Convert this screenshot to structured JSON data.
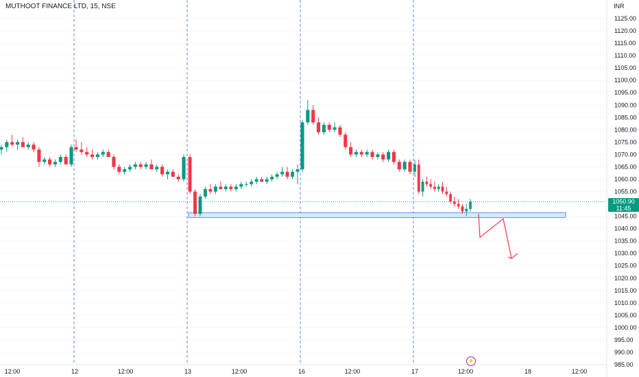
{
  "header": {
    "title": "MUTHOOT FINANCE LTD, 15, NSE",
    "currency": "INR"
  },
  "price_badge": {
    "price": "1050.90",
    "countdown": "11:45",
    "color": "#089981"
  },
  "colors": {
    "up": "#089981",
    "down": "#f23645",
    "separator": "#2962ff",
    "zone_fill": "#d5e6fb",
    "zone_stroke": "#2962ff",
    "arrow": "#f23645"
  },
  "chart_data": {
    "type": "candlestick",
    "ylim": [
      985,
      1128
    ],
    "y_ticks": [
      1125,
      1120,
      1115,
      1110,
      1105,
      1100,
      1095,
      1090,
      1085,
      1080,
      1075,
      1070,
      1065,
      1060,
      1055,
      1045,
      1040,
      1035,
      1030,
      1025,
      1020,
      1015,
      1010,
      1005,
      1000,
      995,
      990,
      985
    ],
    "y_tick_labels": [
      "1125.00",
      "1120.00",
      "1115.00",
      "1110.00",
      "1105.00",
      "1100.00",
      "1095.00",
      "1090.00",
      "1085.00",
      "1080.00",
      "1075.00",
      "1070.00",
      "1065.00",
      "1060.00",
      "1055.00",
      "1045.00",
      "1040.00",
      "1035.00",
      "1030.00",
      "1025.00",
      "1020.00",
      "1015.00",
      "1010.00",
      "1005.00",
      "1000.00",
      "995.00",
      "990.00",
      "985.00"
    ],
    "x_labels": [
      "12:00",
      "12",
      "12:00",
      "13",
      "12:00",
      "16",
      "12:00",
      "17",
      "12:00",
      "18",
      "12:00"
    ],
    "day_separators": [
      "12",
      "13",
      "16",
      "17"
    ],
    "last_price": 1050.9,
    "support_zone": [
      1044.5,
      1046.5
    ],
    "projection_path": [
      1046,
      1036.5,
      1044,
      1028
    ],
    "sessions": [
      {
        "day": "11",
        "candles": [
          [
            1072,
            1074,
            1070,
            1073
          ],
          [
            1073,
            1076,
            1071,
            1075
          ],
          [
            1075,
            1078,
            1073,
            1074
          ],
          [
            1074,
            1076,
            1072,
            1075
          ],
          [
            1075,
            1077,
            1073,
            1073
          ],
          [
            1073,
            1075,
            1072,
            1074
          ],
          [
            1074,
            1075,
            1071,
            1072
          ],
          [
            1072,
            1073,
            1065,
            1067
          ],
          [
            1067,
            1069,
            1066,
            1068
          ],
          [
            1068,
            1069,
            1065,
            1066
          ],
          [
            1066,
            1068,
            1065,
            1067
          ],
          [
            1067,
            1070,
            1066,
            1069
          ],
          [
            1069,
            1070,
            1066,
            1066
          ],
          [
            1066,
            1074,
            1065,
            1073
          ]
        ]
      },
      {
        "day": "12",
        "candles": [
          [
            1073,
            1076,
            1071,
            1072
          ],
          [
            1072,
            1075,
            1070,
            1071
          ],
          [
            1071,
            1073,
            1069,
            1070
          ],
          [
            1070,
            1072,
            1068,
            1069
          ],
          [
            1069,
            1071,
            1068,
            1070
          ],
          [
            1070,
            1072,
            1069,
            1071
          ],
          [
            1071,
            1072,
            1069,
            1069
          ],
          [
            1069,
            1070,
            1064,
            1065
          ],
          [
            1065,
            1066,
            1062,
            1063
          ],
          [
            1063,
            1065,
            1062,
            1064
          ],
          [
            1064,
            1066,
            1063,
            1065
          ],
          [
            1065,
            1067,
            1064,
            1066
          ],
          [
            1066,
            1067,
            1064,
            1065
          ],
          [
            1065,
            1067,
            1064,
            1066
          ],
          [
            1066,
            1068,
            1064,
            1064
          ],
          [
            1064,
            1066,
            1063,
            1065
          ],
          [
            1065,
            1066,
            1061,
            1062
          ],
          [
            1062,
            1064,
            1060,
            1063
          ],
          [
            1063,
            1064,
            1061,
            1061
          ],
          [
            1061,
            1062,
            1059,
            1060
          ],
          [
            1060,
            1070,
            1059,
            1069
          ]
        ]
      },
      {
        "day": "13",
        "candles": [
          [
            1069,
            1070,
            1054,
            1055
          ],
          [
            1055,
            1056,
            1045,
            1046
          ],
          [
            1046,
            1054,
            1045,
            1053
          ],
          [
            1053,
            1057,
            1052,
            1056
          ],
          [
            1056,
            1058,
            1054,
            1055
          ],
          [
            1055,
            1058,
            1054,
            1057
          ],
          [
            1057,
            1059,
            1056,
            1056
          ],
          [
            1056,
            1058,
            1055,
            1057
          ],
          [
            1057,
            1058,
            1055,
            1056
          ],
          [
            1056,
            1058,
            1055,
            1057
          ],
          [
            1057,
            1059,
            1056,
            1058
          ],
          [
            1058,
            1059,
            1057,
            1058
          ],
          [
            1058,
            1060,
            1057,
            1059
          ],
          [
            1059,
            1061,
            1058,
            1060
          ],
          [
            1060,
            1061,
            1059,
            1059
          ],
          [
            1059,
            1061,
            1058,
            1060
          ],
          [
            1060,
            1062,
            1059,
            1061
          ],
          [
            1061,
            1063,
            1060,
            1062
          ],
          [
            1062,
            1065,
            1061,
            1063
          ],
          [
            1063,
            1065,
            1060,
            1061
          ],
          [
            1061,
            1064,
            1060,
            1063
          ],
          [
            1063,
            1066,
            1058,
            1064
          ]
        ]
      },
      {
        "day": "16",
        "candles": [
          [
            1064,
            1084,
            1063,
            1083
          ],
          [
            1083,
            1092,
            1082,
            1088
          ],
          [
            1088,
            1090,
            1082,
            1083
          ],
          [
            1083,
            1085,
            1078,
            1079
          ],
          [
            1079,
            1083,
            1078,
            1082
          ],
          [
            1082,
            1083,
            1079,
            1080
          ],
          [
            1080,
            1083,
            1079,
            1081
          ],
          [
            1081,
            1082,
            1077,
            1078
          ],
          [
            1078,
            1079,
            1072,
            1073
          ],
          [
            1073,
            1075,
            1069,
            1070
          ],
          [
            1070,
            1072,
            1069,
            1071
          ],
          [
            1071,
            1072,
            1069,
            1070
          ],
          [
            1070,
            1072,
            1069,
            1071
          ],
          [
            1071,
            1072,
            1068,
            1069
          ],
          [
            1069,
            1071,
            1068,
            1070
          ],
          [
            1070,
            1071,
            1067,
            1068
          ],
          [
            1068,
            1072,
            1067,
            1071
          ],
          [
            1071,
            1072,
            1066,
            1067
          ],
          [
            1067,
            1068,
            1063,
            1064
          ],
          [
            1064,
            1068,
            1063,
            1067
          ],
          [
            1067,
            1068,
            1062,
            1063
          ]
        ]
      },
      {
        "day": "17",
        "candles": [
          [
            1063,
            1068,
            1061,
            1066
          ],
          [
            1066,
            1068,
            1054,
            1055
          ],
          [
            1055,
            1060,
            1053,
            1059
          ],
          [
            1059,
            1061,
            1057,
            1058
          ],
          [
            1058,
            1060,
            1056,
            1057
          ],
          [
            1057,
            1059,
            1055,
            1056
          ],
          [
            1056,
            1058,
            1055,
            1057
          ],
          [
            1057,
            1059,
            1054,
            1055
          ],
          [
            1055,
            1057,
            1053,
            1054
          ],
          [
            1054,
            1055,
            1050,
            1051
          ],
          [
            1051,
            1053,
            1049,
            1050
          ],
          [
            1050,
            1052,
            1048,
            1049
          ],
          [
            1049,
            1050,
            1046,
            1047
          ],
          [
            1047,
            1050,
            1045,
            1048
          ],
          [
            1048,
            1052,
            1047,
            1050.9
          ]
        ]
      }
    ]
  }
}
